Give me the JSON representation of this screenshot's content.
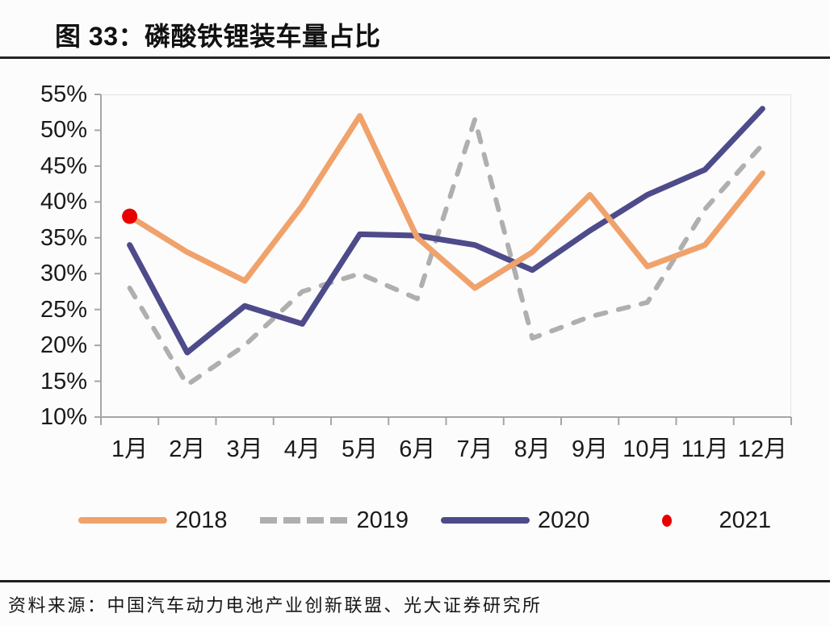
{
  "title": "图 33：磷酸铁锂装车量占比",
  "source": "资料来源：中国汽车动力电池产业创新联盟、光大证券研究所",
  "colors": {
    "series_2018": "#F0A26B",
    "series_2019": "#AFAFAF",
    "series_2020": "#4D4B89",
    "series_2021": "#E80000",
    "axis": "#A6A6A6",
    "plot_border": "#E3E3E6",
    "text": "#1A1A1A",
    "divider": "#242424"
  },
  "chart_data": {
    "type": "line",
    "title": "图 33：磷酸铁锂装车量占比",
    "categories": [
      "1月",
      "2月",
      "3月",
      "4月",
      "5月",
      "6月",
      "7月",
      "8月",
      "9月",
      "10月",
      "11月",
      "12月"
    ],
    "series": [
      {
        "name": "2018",
        "style": "solid",
        "color": "#F0A26B",
        "values": [
          38,
          33,
          29,
          39.5,
          52,
          35,
          28,
          33,
          41,
          31,
          34,
          44
        ]
      },
      {
        "name": "2019",
        "style": "dashed",
        "color": "#AFAFAF",
        "values": [
          28,
          14.5,
          20,
          27.5,
          30,
          26.5,
          51.5,
          21,
          24,
          26,
          39,
          48
        ]
      },
      {
        "name": "2020",
        "style": "solid",
        "color": "#4D4B89",
        "values": [
          34,
          19,
          25.5,
          23,
          35.5,
          35.3,
          34,
          30.5,
          36,
          41,
          44.5,
          53
        ]
      },
      {
        "name": "2021",
        "style": "dot",
        "color": "#E80000",
        "values": [
          38,
          null,
          null,
          null,
          null,
          null,
          null,
          null,
          null,
          null,
          null,
          null
        ]
      }
    ],
    "xlabel": "",
    "ylabel": "",
    "ylim": [
      10,
      55
    ],
    "ytick_step": 5,
    "ytick_suffix": "%",
    "grid": false,
    "legend_position": "bottom"
  }
}
